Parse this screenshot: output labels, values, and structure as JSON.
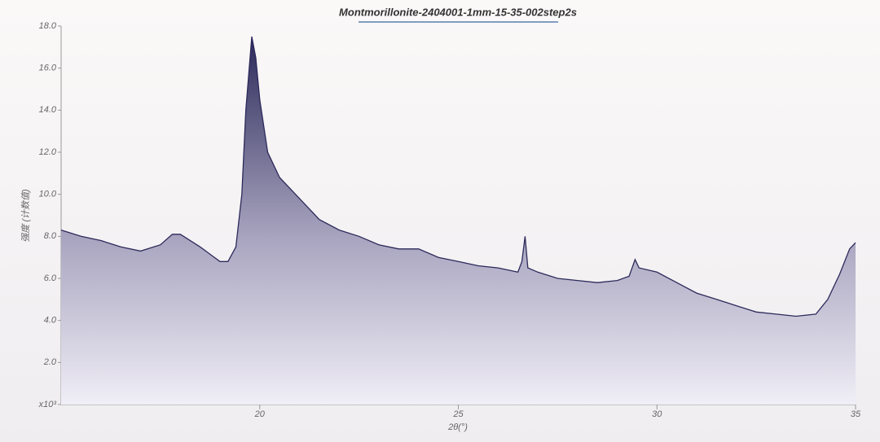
{
  "chart_data": {
    "type": "area",
    "title": "Montmorillonite-2404001-1mm-15-35-002step2s",
    "x_label": "2θ(°)",
    "y_label": "强度 (计数值)",
    "color": "#2c2a5a",
    "x": [
      15.0,
      15.5,
      16.0,
      16.5,
      17.0,
      17.5,
      17.8,
      18.0,
      18.5,
      19.0,
      19.2,
      19.4,
      19.55,
      19.65,
      19.8,
      19.9,
      20.0,
      20.2,
      20.5,
      21.0,
      21.5,
      22.0,
      22.5,
      23.0,
      23.5,
      24.0,
      24.5,
      25.0,
      25.5,
      26.0,
      26.5,
      26.6,
      26.68,
      26.75,
      27.0,
      27.5,
      28.0,
      28.5,
      29.0,
      29.3,
      29.45,
      29.55,
      30.0,
      30.5,
      31.0,
      31.5,
      32.0,
      32.5,
      33.0,
      33.5,
      34.0,
      34.3,
      34.6,
      34.85,
      35.0
    ],
    "values": [
      8.3,
      8.0,
      7.8,
      7.5,
      7.3,
      7.6,
      8.1,
      8.1,
      7.5,
      6.8,
      6.8,
      7.5,
      10.0,
      14.0,
      17.5,
      16.5,
      14.5,
      12.0,
      10.8,
      9.8,
      8.8,
      8.3,
      8.0,
      7.6,
      7.4,
      7.4,
      7.0,
      6.8,
      6.6,
      6.5,
      6.3,
      6.8,
      8.0,
      6.5,
      6.3,
      6.0,
      5.9,
      5.8,
      5.9,
      6.1,
      6.9,
      6.5,
      6.3,
      5.8,
      5.3,
      5.0,
      4.7,
      4.4,
      4.3,
      4.2,
      4.3,
      5.0,
      6.2,
      7.4,
      7.7
    ],
    "xlim": [
      15,
      35
    ],
    "xticks": [
      20,
      25,
      30,
      35
    ],
    "ylim": [
      0,
      18
    ],
    "yticks": [
      {
        "value": 0,
        "label": "x10³"
      },
      {
        "value": 2,
        "label": "2.0"
      },
      {
        "value": 4,
        "label": "4.0"
      },
      {
        "value": 6,
        "label": "6.0"
      },
      {
        "value": 8,
        "label": "8.0"
      },
      {
        "value": 10,
        "label": "10.0"
      },
      {
        "value": 12,
        "label": "12.0"
      },
      {
        "value": 14,
        "label": "14.0"
      },
      {
        "value": 16,
        "label": "16.0"
      },
      {
        "value": 18,
        "label": "18.0"
      }
    ]
  }
}
